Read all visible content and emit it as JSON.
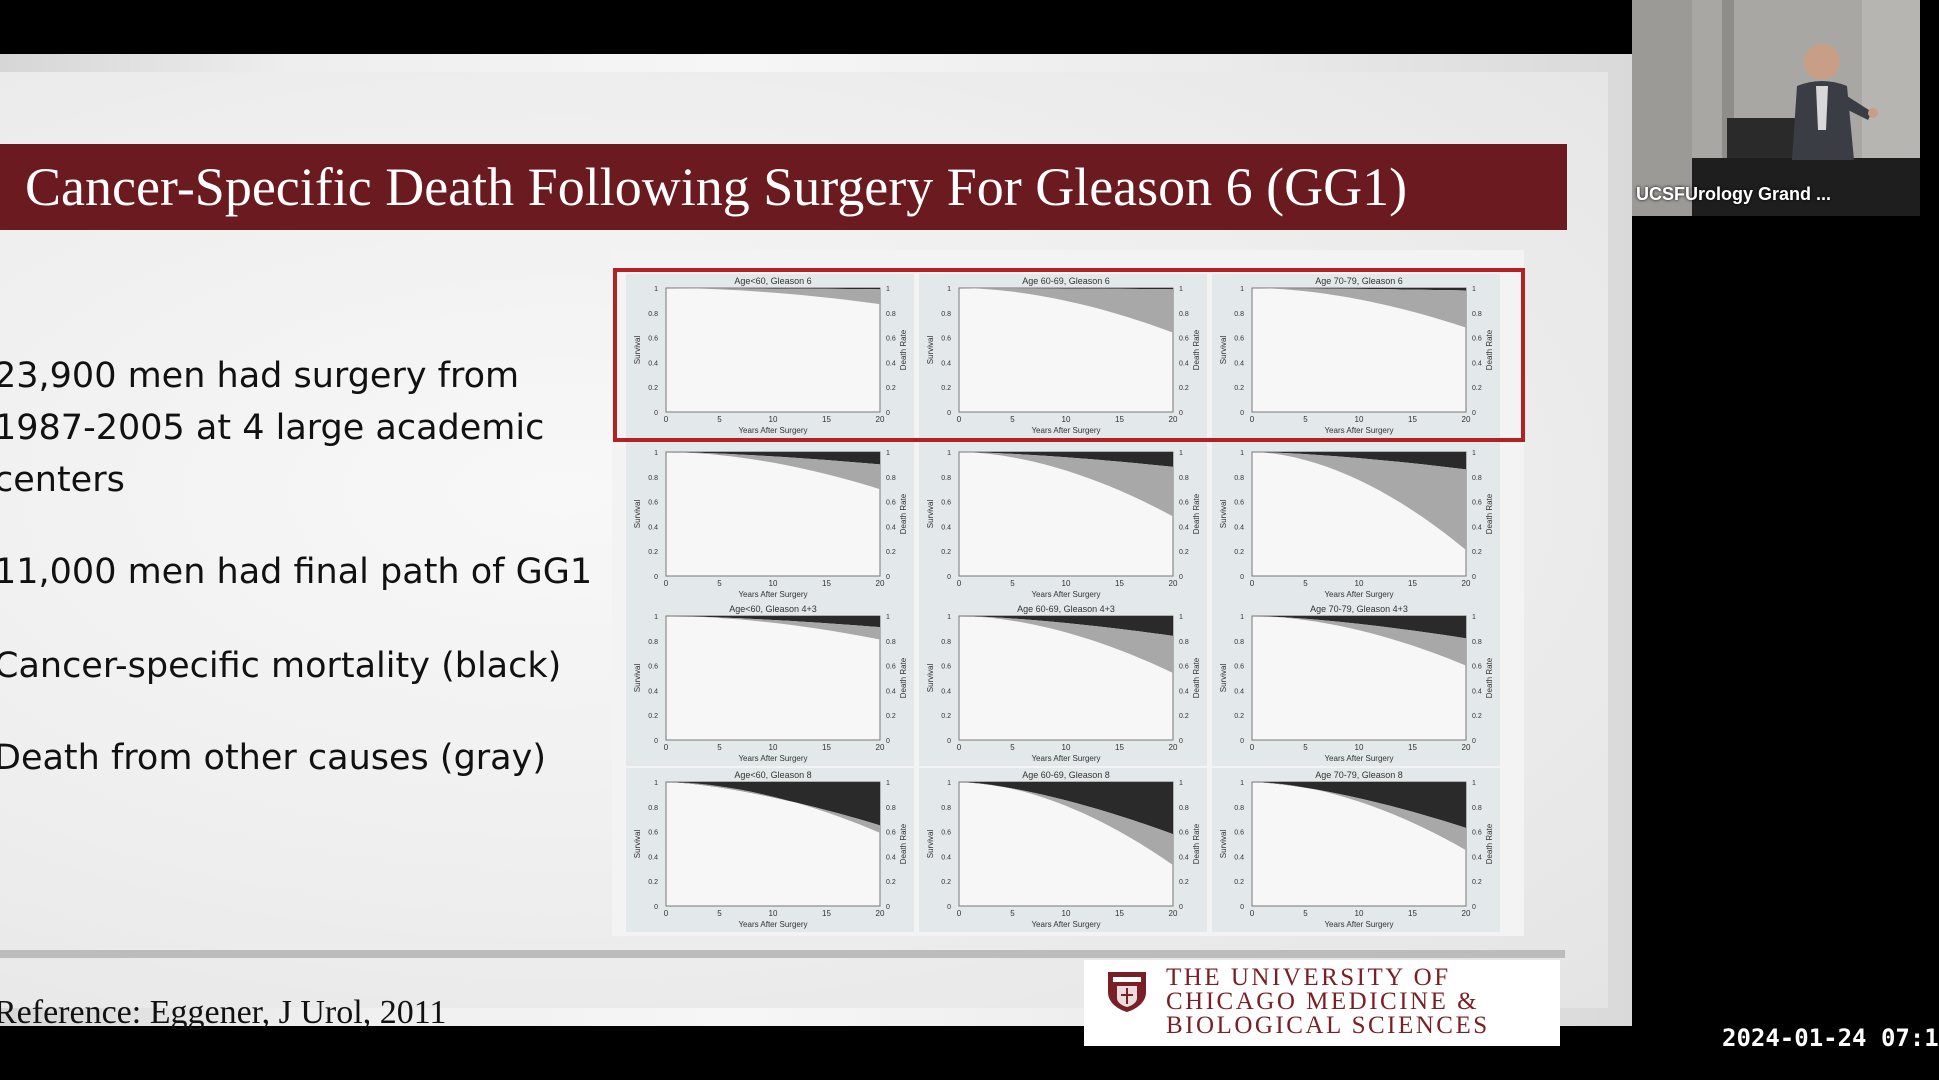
{
  "slide": {
    "title": "Cancer-Specific Death Following Surgery For Gleason 6 (GG1)",
    "bullets": [
      "23,900 men had surgery from",
      "1987-2005 at 4 large academic",
      "centers",
      "11,000 men had final path of GG1",
      "Cancer-specific mortality (black)",
      "Death from other causes (gray)"
    ],
    "reference": "Reference: Eggener, J Urol, 2011",
    "logo_lines": [
      "THE UNIVERSITY OF",
      "CHICAGO MEDICINE &",
      "BIOLOGICAL SCIENCES"
    ],
    "accent_color": "#6b1a1f",
    "highlight_color": "#b22222"
  },
  "chart_data": {
    "type": "area",
    "xlabel": "Years After Surgery",
    "ylabel_left": "Survival",
    "ylabel_right": "Death Rate",
    "xticks": [
      0,
      5,
      10,
      15,
      20
    ],
    "yticks_left": [
      0,
      0.2,
      0.4,
      0.6,
      0.8,
      1
    ],
    "yticks_right": [
      1,
      0.8,
      0.6,
      0.4,
      0.2,
      0
    ],
    "colors": {
      "cancer_specific": "#2a2a2a",
      "other_causes": "#a8a8a8"
    },
    "panels": [
      {
        "title": "Age<60, Gleason 6",
        "cancer": 0.01,
        "other": 0.12
      },
      {
        "title": "Age 60-69, Gleason 6",
        "cancer": 0.01,
        "other": 0.35
      },
      {
        "title": "Age 70-79, Gleason 6",
        "cancer": 0.02,
        "other": 0.3
      },
      {
        "title": "",
        "cancer": 0.1,
        "other": 0.2
      },
      {
        "title": "",
        "cancer": 0.12,
        "other": 0.4
      },
      {
        "title": "",
        "cancer": 0.14,
        "other": 0.65
      },
      {
        "title": "Age<60, Gleason 4+3",
        "cancer": 0.09,
        "other": 0.1
      },
      {
        "title": "Age 60-69, Gleason 4+3",
        "cancer": 0.16,
        "other": 0.3
      },
      {
        "title": "Age 70-79, Gleason 4+3",
        "cancer": 0.18,
        "other": 0.22
      },
      {
        "title": "Age<60, Gleason 8",
        "cancer": 0.35,
        "other": 0.06
      },
      {
        "title": "Age 60-69, Gleason 8",
        "cancer": 0.42,
        "other": 0.25
      },
      {
        "title": "Age 70-79, Gleason 8",
        "cancer": 0.37,
        "other": 0.18
      }
    ]
  },
  "webcam": {
    "label": "UCSFUrology Grand ..."
  },
  "timestamp": "2024-01-24 07:1"
}
